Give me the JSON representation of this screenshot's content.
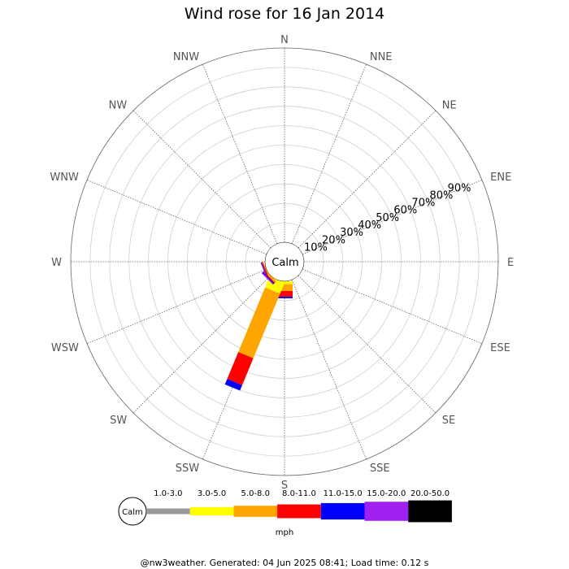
{
  "chart_data": {
    "type": "wind-rose",
    "title": "Wind rose for 16 Jan 2014",
    "center_label": "Calm",
    "directions": [
      "N",
      "NNE",
      "NE",
      "ENE",
      "E",
      "ESE",
      "SE",
      "SSE",
      "S",
      "SSW",
      "SW",
      "WSW",
      "W",
      "WNW",
      "NW",
      "NNW"
    ],
    "ring_labels": [
      "10%",
      "20%",
      "30%",
      "40%",
      "50%",
      "60%",
      "70%",
      "80%",
      "90%"
    ],
    "rmax_percent": 100,
    "speed_bins": [
      {
        "label": "1.0-3.0",
        "color": "#999999"
      },
      {
        "label": "3.0-5.0",
        "color": "#ffff00"
      },
      {
        "label": "5.0-8.0",
        "color": "#ffa500"
      },
      {
        "label": "8.0-11.0",
        "color": "#ff0000"
      },
      {
        "label": "11.0-15.0",
        "color": "#0000ff"
      },
      {
        "label": "15.0-20.0",
        "color": "#a020f0"
      },
      {
        "label": "20.0-50.0",
        "color": "#000000"
      }
    ],
    "series": [
      {
        "direction": "S",
        "percents": [
          0,
          1.5,
          3.5,
          3,
          0.8,
          0,
          0
        ]
      },
      {
        "direction": "SSW",
        "percents": [
          0,
          6,
          36,
          15,
          3,
          0,
          0
        ]
      },
      {
        "direction": "SW",
        "percents": [
          0,
          0,
          1,
          0.5,
          0.5,
          0.5,
          0
        ]
      },
      {
        "direction": "WSW",
        "percents": [
          0,
          0,
          0.5,
          0.5,
          0.3,
          0.3,
          0
        ]
      }
    ],
    "legend": {
      "calm_label": "Calm",
      "unit_label": "mph"
    }
  },
  "footer": {
    "text": "@nw3weather. Generated: 04 Jun 2025 08:41; Load time: 0.12 s"
  }
}
